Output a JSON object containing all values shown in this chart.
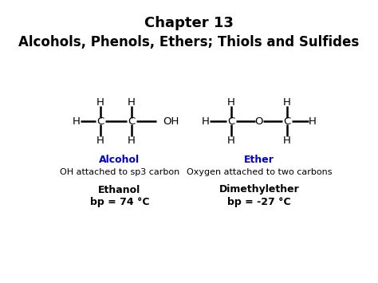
{
  "title_line1": "Chapter 13",
  "title_line2": "Alcohols, Phenols, Ethers; Thiols and Sulfides",
  "title_fontsize": 13,
  "subtitle_fontsize": 12,
  "bg_color": "#ffffff",
  "blue_color": "#0000cc",
  "black_color": "#000000",
  "alcohol_label": "Alcohol",
  "alcohol_desc": "OH attached to sp3 carbon",
  "alcohol_name": "Ethanol",
  "alcohol_bp": "bp = 74 °C",
  "ether_label": "Ether",
  "ether_desc": "Oxygen attached to two carbons",
  "ether_name": "Dimethylether",
  "ether_bp": "bp = -27 °C"
}
